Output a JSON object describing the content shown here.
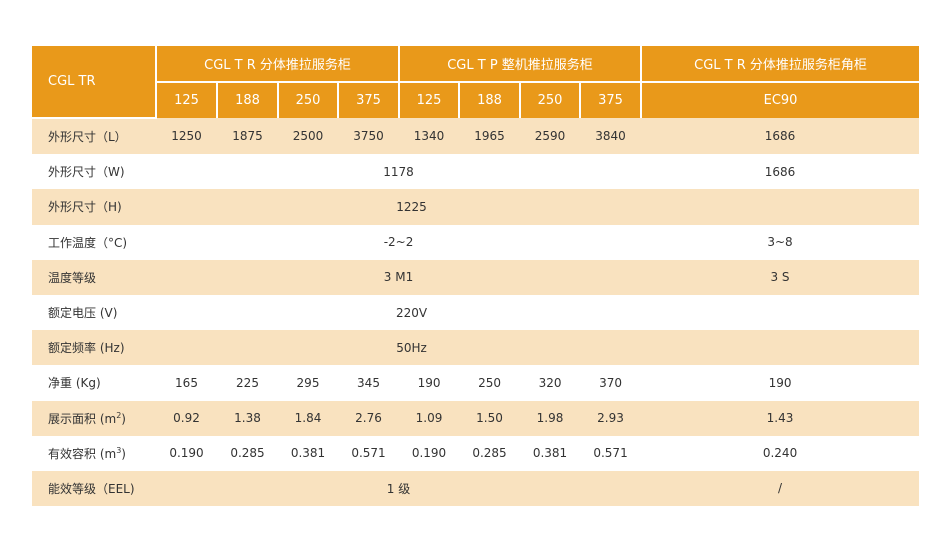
{
  "header": {
    "corner": "CGL TR",
    "groups": [
      "CGL T R 分体推拉服务柜",
      "CGL T P 整机推拉服务柜",
      "CGL T R 分体推拉服务柜角柜"
    ],
    "models": [
      "125",
      "188",
      "250",
      "375",
      "125",
      "188",
      "250",
      "375",
      "EC90"
    ]
  },
  "rows": {
    "length": {
      "label": "外形尺寸（L）",
      "values": [
        "1250",
        "1875",
        "2500",
        "3750",
        "1340",
        "1965",
        "2590",
        "3840",
        "1686"
      ]
    },
    "width": {
      "label": "外形尺寸（W)",
      "value_main": "1178",
      "value_corner": "1686"
    },
    "height": {
      "label": "外形尺寸（H)",
      "value": "1225"
    },
    "temp": {
      "label": "工作温度（°C)",
      "value_main": "-2~2",
      "value_corner": "3~8"
    },
    "temp_class": {
      "label": "温度等级",
      "value_main": "3 M1",
      "value_corner": "3 S"
    },
    "voltage": {
      "label": "额定电压 (V)",
      "value": "220V"
    },
    "frequency": {
      "label": "额定频率 (Hz)",
      "value": "50Hz"
    },
    "weight": {
      "label": "净重 (Kg)",
      "values": [
        "165",
        "225",
        "295",
        "345",
        "190",
        "250",
        "320",
        "370",
        "190"
      ]
    },
    "display_area": {
      "label_pre": "展示面积 (m",
      "label_sup": "2",
      "label_post": ")",
      "values": [
        "0.92",
        "1.38",
        "1.84",
        "2.76",
        "1.09",
        "1.50",
        "1.98",
        "2.93",
        "1.43"
      ]
    },
    "volume": {
      "label_pre": "有效容积 (m",
      "label_sup": "3",
      "label_post": ")",
      "values": [
        "0.190",
        "0.285",
        "0.381",
        "0.571",
        "0.190",
        "0.285",
        "0.381",
        "0.571",
        "0.240"
      ]
    },
    "energy": {
      "label": "能效等级（EEL)",
      "value_main": "1 级",
      "value_corner": "/"
    }
  },
  "colors": {
    "header_bg": "#e9991a",
    "stripe_bg": "#f9e2bf",
    "text": "#333333"
  }
}
